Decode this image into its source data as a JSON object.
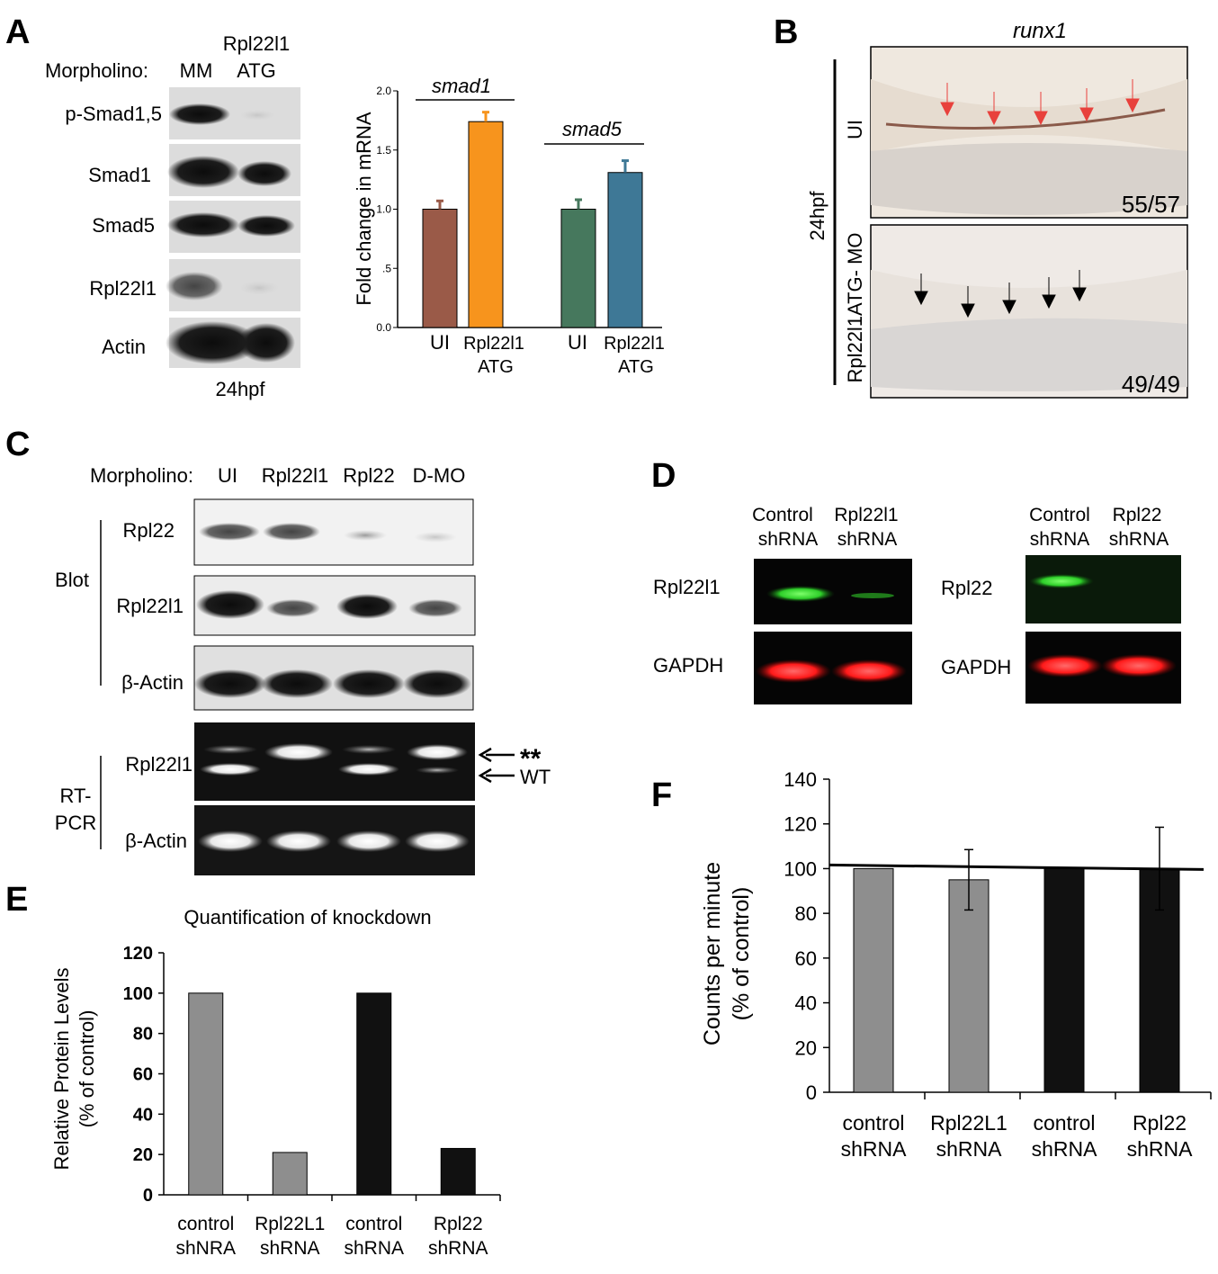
{
  "panels": {
    "A": {
      "letter": "A",
      "morpholino_label": "Morpholino:",
      "lanes": [
        "MM",
        "Rpl22l1",
        "ATG"
      ],
      "blot_rows": [
        "p-Smad1,5",
        "Smad1",
        "Smad5",
        "Rpl22l1",
        "Actin"
      ],
      "footer": "24hpf"
    },
    "B": {
      "letter": "B",
      "gene": "runx1",
      "side_label": "24hpf",
      "row1_label": "UI",
      "row1_count": "55/57",
      "row2_label": "Rpl22l1ATG- MO",
      "row2_count": "49/49"
    },
    "C": {
      "letter": "C",
      "morpholino_label": "Morpholino:",
      "lanes": [
        "UI",
        "Rpl22l1",
        "Rpl22",
        "D-MO"
      ],
      "blot_label": "Blot",
      "blot_rows": [
        "Rpl22",
        "Rpl22l1",
        "β-Actin"
      ],
      "rtpcr_label_1": "RT-",
      "rtpcr_label_2": "PCR",
      "rtpcr_rows": [
        "Rpl22l1",
        "β-Actin"
      ],
      "mark_star": "**",
      "mark_wt": "WT"
    },
    "D": {
      "letter": "D",
      "left_lanes": [
        "Control",
        "shRNA",
        "Rpl22l1",
        "shRNA"
      ],
      "right_lanes": [
        "Control",
        "shRNA",
        "Rpl22",
        "shRNA"
      ],
      "left_rows": [
        "Rpl22l1",
        "GAPDH"
      ],
      "right_rows": [
        "Rpl22",
        "GAPDH"
      ]
    },
    "E": {
      "letter": "E"
    },
    "F": {
      "letter": "F"
    }
  },
  "colors": {
    "brown": "#9a5a48",
    "orange": "#f7941d",
    "green": "#46785d",
    "teal": "#3e7896",
    "gray": "#8e8e8e",
    "black": "#111111"
  },
  "chart_data": [
    {
      "id": "A-bar",
      "type": "bar",
      "ylabel": "Fold change in mRNA",
      "ylim": [
        0,
        2.0
      ],
      "yticks": [
        "0.0",
        ".5",
        "1.0",
        "1.5",
        "2.0"
      ],
      "yticks_values": [
        0,
        0.5,
        1.0,
        1.5,
        2.0
      ],
      "groups": [
        {
          "name": "smad1",
          "labels": [
            "UI",
            "Rpl22l1",
            "ATG"
          ]
        },
        {
          "name": "smad5",
          "labels": [
            "UI",
            "Rpl22l1",
            "ATG"
          ]
        }
      ],
      "values": [
        1.0,
        1.74,
        1.0,
        1.31
      ],
      "errors": [
        0.07,
        0.08,
        0.08,
        0.1
      ]
    },
    {
      "id": "E-bar",
      "type": "bar",
      "title": "Quantification of knockdown",
      "ylabel_1": "Relative Protein Levels",
      "ylabel_2": "(% of control)",
      "ylim": [
        0,
        120
      ],
      "yticks": [
        "0",
        "20",
        "40",
        "60",
        "80",
        "100",
        "120"
      ],
      "yticks_values": [
        0,
        20,
        40,
        60,
        80,
        100,
        120
      ],
      "categories": [
        [
          "control",
          "shNRA"
        ],
        [
          "Rpl22L1",
          "shRNA"
        ],
        [
          "control",
          "shRNA"
        ],
        [
          "Rpl22",
          "shRNA"
        ]
      ],
      "values": [
        100,
        21,
        100,
        23
      ]
    },
    {
      "id": "F-bar",
      "type": "bar",
      "ylabel_1": "Counts per minute",
      "ylabel_2": "(% of control)",
      "ylim": [
        0,
        140
      ],
      "yticks": [
        "0",
        "20",
        "40",
        "60",
        "80",
        "100",
        "120",
        "140"
      ],
      "yticks_values": [
        0,
        20,
        40,
        60,
        80,
        100,
        120,
        140
      ],
      "categories": [
        [
          "control",
          "shRNA"
        ],
        [
          "Rpl22L1",
          "shRNA"
        ],
        [
          "control",
          "shRNA"
        ],
        [
          "Rpl22",
          "shRNA"
        ]
      ],
      "values": [
        100,
        95,
        100,
        100
      ],
      "errors": [
        0,
        13.5,
        0,
        18.5
      ],
      "reference_line": 100
    }
  ]
}
